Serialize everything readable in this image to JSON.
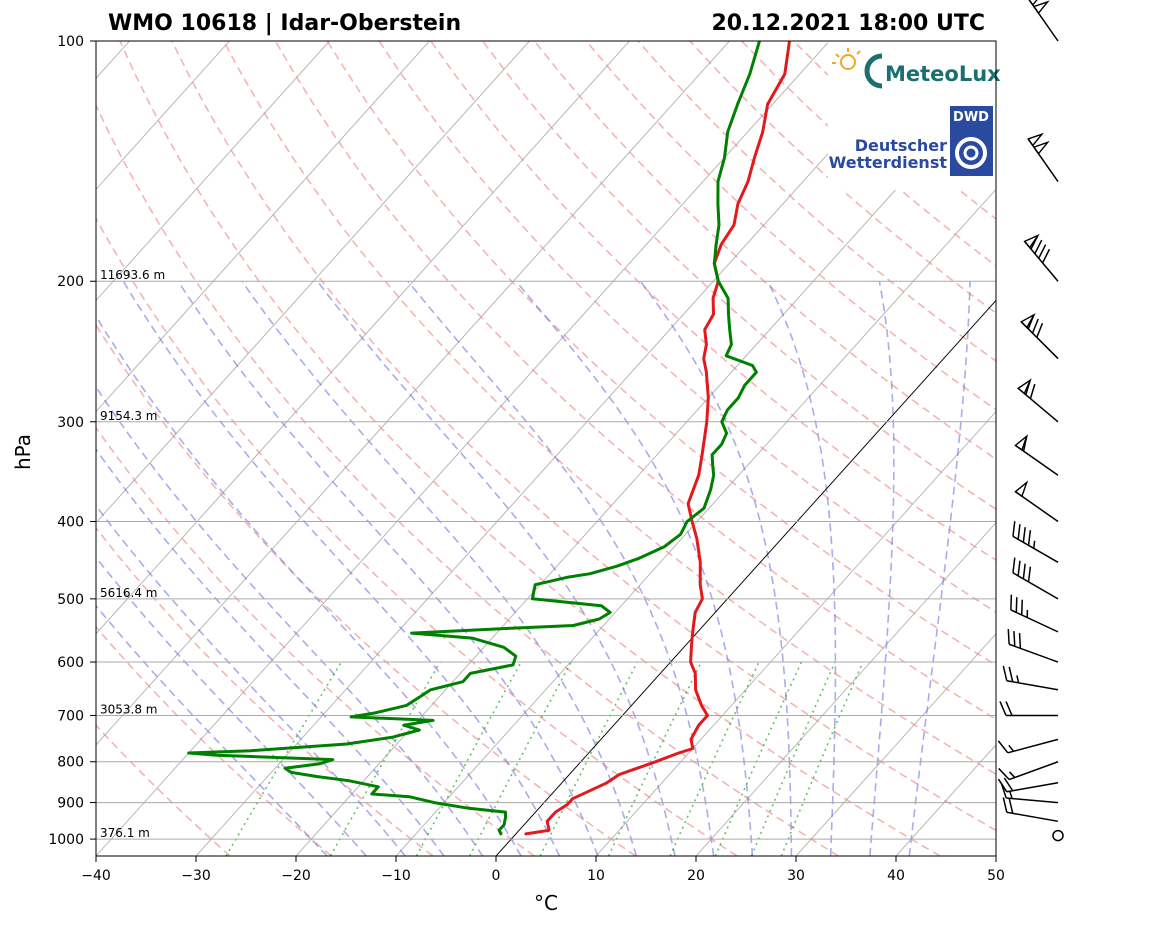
{
  "chart_data": {
    "type": "line",
    "title_left": "WMO 10618 | Idar-Oberstein",
    "title_right": "20.12.2021 18:00 UTC",
    "xlabel": "°C",
    "ylabel": "hPa",
    "xlim": [
      -40,
      50
    ],
    "ylim": [
      1050,
      100
    ],
    "y_scale": "log",
    "grid": true,
    "x_ticks": [
      -40,
      -30,
      -20,
      -10,
      0,
      10,
      20,
      30,
      40,
      50
    ],
    "x_tick_labels": [
      "−40",
      "−30",
      "−20",
      "−10",
      "0",
      "10",
      "20",
      "30",
      "40",
      "50"
    ],
    "y_ticks": [
      100,
      200,
      300,
      400,
      500,
      600,
      700,
      800,
      900,
      1000
    ],
    "y_tick_labels": [
      "100",
      "200",
      "300",
      "400",
      "500",
      "600",
      "700",
      "800",
      "900",
      "1000"
    ],
    "height_labels": [
      {
        "p": 1000,
        "text": "376.1 m"
      },
      {
        "p": 700,
        "text": "3053.8 m"
      },
      {
        "p": 500,
        "text": "5616.4 m"
      },
      {
        "p": 300,
        "text": "9154.3 m"
      },
      {
        "p": 200,
        "text": "11693.6 m"
      }
    ],
    "series": [
      {
        "color": "#e31a1c",
        "points": [
          [
            985,
            1.0
          ],
          [
            975,
            3.0
          ],
          [
            950,
            2.0
          ],
          [
            925,
            2.0
          ],
          [
            905,
            2.5
          ],
          [
            890,
            2.5
          ],
          [
            870,
            3.5
          ],
          [
            850,
            4.5
          ],
          [
            830,
            5.0
          ],
          [
            800,
            7.5
          ],
          [
            780,
            9.0
          ],
          [
            770,
            10.0
          ],
          [
            750,
            9.0
          ],
          [
            720,
            8.5
          ],
          [
            700,
            8.5
          ],
          [
            680,
            7.0
          ],
          [
            650,
            5.0
          ],
          [
            620,
            3.5
          ],
          [
            600,
            2.0
          ],
          [
            570,
            0.5
          ],
          [
            550,
            -0.5
          ],
          [
            520,
            -2.0
          ],
          [
            500,
            -2.5
          ],
          [
            480,
            -4.0
          ],
          [
            450,
            -6.0
          ],
          [
            420,
            -8.5
          ],
          [
            400,
            -10.5
          ],
          [
            380,
            -12.5
          ],
          [
            350,
            -14.0
          ],
          [
            330,
            -15.5
          ],
          [
            300,
            -18.0
          ],
          [
            280,
            -20.0
          ],
          [
            260,
            -22.5
          ],
          [
            250,
            -24.0
          ],
          [
            240,
            -25.0
          ],
          [
            230,
            -26.5
          ],
          [
            220,
            -27.0
          ],
          [
            210,
            -28.5
          ],
          [
            200,
            -29.5
          ],
          [
            190,
            -31.5
          ],
          [
            180,
            -32.5
          ],
          [
            170,
            -33.0
          ],
          [
            160,
            -34.5
          ],
          [
            150,
            -35.5
          ],
          [
            140,
            -37.0
          ],
          [
            130,
            -38.5
          ],
          [
            120,
            -40.5
          ],
          [
            110,
            -41.5
          ],
          [
            100,
            -44.0
          ]
        ]
      },
      {
        "color": "#008000",
        "points": [
          [
            985,
            -1.5
          ],
          [
            975,
            -2.0
          ],
          [
            960,
            -2.0
          ],
          [
            940,
            -2.5
          ],
          [
            925,
            -3.0
          ],
          [
            915,
            -7.0
          ],
          [
            900,
            -11.0
          ],
          [
            885,
            -14.0
          ],
          [
            878,
            -18.0
          ],
          [
            870,
            -18.0
          ],
          [
            860,
            -18.0
          ],
          [
            845,
            -21.5
          ],
          [
            835,
            -25.0
          ],
          [
            825,
            -28.0
          ],
          [
            815,
            -29.0
          ],
          [
            805,
            -26.0
          ],
          [
            795,
            -25.0
          ],
          [
            785,
            -37.0
          ],
          [
            780,
            -40.0
          ],
          [
            775,
            -34.0
          ],
          [
            760,
            -25.0
          ],
          [
            745,
            -21.0
          ],
          [
            730,
            -19.0
          ],
          [
            720,
            -21.0
          ],
          [
            710,
            -18.5
          ],
          [
            703,
            -27.0
          ],
          [
            695,
            -25.0
          ],
          [
            680,
            -22.5
          ],
          [
            665,
            -22.0
          ],
          [
            650,
            -21.5
          ],
          [
            635,
            -19.0
          ],
          [
            620,
            -19.0
          ],
          [
            605,
            -15.5
          ],
          [
            590,
            -16.0
          ],
          [
            575,
            -18.0
          ],
          [
            560,
            -22.0
          ],
          [
            552,
            -28.5
          ],
          [
            545,
            -20.0
          ],
          [
            540,
            -13.0
          ],
          [
            530,
            -11.0
          ],
          [
            520,
            -10.5
          ],
          [
            510,
            -12.0
          ],
          [
            500,
            -19.5
          ],
          [
            490,
            -20.0
          ],
          [
            480,
            -20.5
          ],
          [
            470,
            -18.0
          ],
          [
            465,
            -16.0
          ],
          [
            455,
            -14.0
          ],
          [
            445,
            -12.5
          ],
          [
            430,
            -11.0
          ],
          [
            415,
            -10.5
          ],
          [
            400,
            -11.0
          ],
          [
            385,
            -10.5
          ],
          [
            365,
            -11.5
          ],
          [
            350,
            -12.5
          ],
          [
            340,
            -13.5
          ],
          [
            330,
            -14.5
          ],
          [
            320,
            -14.5
          ],
          [
            310,
            -15.0
          ],
          [
            300,
            -16.5
          ],
          [
            290,
            -17.0
          ],
          [
            280,
            -17.0
          ],
          [
            270,
            -17.5
          ],
          [
            260,
            -17.5
          ],
          [
            255,
            -18.5
          ],
          [
            248,
            -22.0
          ],
          [
            240,
            -22.5
          ],
          [
            230,
            -24.0
          ],
          [
            220,
            -25.5
          ],
          [
            210,
            -27.0
          ],
          [
            200,
            -29.5
          ],
          [
            190,
            -31.5
          ],
          [
            180,
            -33.0
          ],
          [
            170,
            -34.5
          ],
          [
            160,
            -36.5
          ],
          [
            150,
            -38.5
          ],
          [
            140,
            -40.0
          ],
          [
            130,
            -42.0
          ],
          [
            120,
            -43.5
          ],
          [
            110,
            -45.0
          ],
          [
            100,
            -47.0
          ]
        ]
      }
    ],
    "line_styles": {
      "isotherm_color": "#000000",
      "dry_adiabat_color": "#f08080",
      "moist_adiabat_color": "#6666dd",
      "mixing_ratio_color": "#22aa22",
      "zero_isotherm_color": "#000000"
    },
    "wind_barbs": [
      {
        "p": 990,
        "ws": 0,
        "wd": 0
      },
      {
        "p": 950,
        "ws": 20,
        "wd": 280
      },
      {
        "p": 900,
        "ws": 15,
        "wd": 275
      },
      {
        "p": 850,
        "ws": 20,
        "wd": 260
      },
      {
        "p": 800,
        "ws": 15,
        "wd": 250
      },
      {
        "p": 750,
        "ws": 15,
        "wd": 255
      },
      {
        "p": 700,
        "ws": 20,
        "wd": 270
      },
      {
        "p": 650,
        "ws": 25,
        "wd": 280
      },
      {
        "p": 600,
        "ws": 30,
        "wd": 290
      },
      {
        "p": 550,
        "ws": 35,
        "wd": 295
      },
      {
        "p": 500,
        "ws": 40,
        "wd": 300
      },
      {
        "p": 450,
        "ws": 45,
        "wd": 300
      },
      {
        "p": 400,
        "ws": 50,
        "wd": 305
      },
      {
        "p": 350,
        "ws": 60,
        "wd": 305
      },
      {
        "p": 300,
        "ws": 70,
        "wd": 310
      },
      {
        "p": 250,
        "ws": 80,
        "wd": 315
      },
      {
        "p": 200,
        "ws": 90,
        "wd": 320
      },
      {
        "p": 150,
        "ws": 100,
        "wd": 325
      },
      {
        "p": 100,
        "ws": 100,
        "wd": 325
      }
    ]
  },
  "logos": {
    "meteolux": "MeteoLux",
    "dwd_short": "DWD",
    "dwd_line1": "Deutscher",
    "dwd_line2": "Wetterdienst",
    "meteolux_color": "#1a6f6f",
    "dwd_color": "#2a4aa0"
  }
}
